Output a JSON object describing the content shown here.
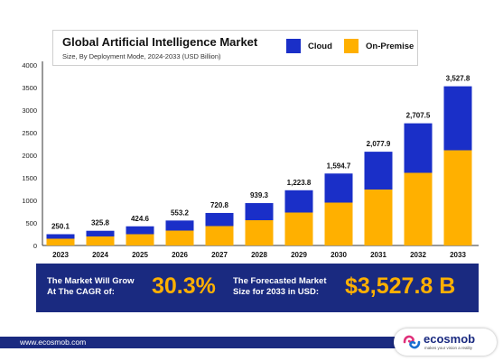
{
  "chart_data": {
    "type": "bar",
    "stacked": true,
    "title": "Global Artificial Intelligence Market",
    "subtitle": "Size, By Deployment Mode, 2024-2033 (USD Billion)",
    "categories": [
      "2023",
      "2024",
      "2025",
      "2026",
      "2027",
      "2028",
      "2029",
      "2030",
      "2031",
      "2032",
      "2033"
    ],
    "series": [
      {
        "name": "On-Premise",
        "color": "#ffb000",
        "values": [
          150,
          200,
          250,
          330,
          430,
          560,
          730,
          950,
          1240,
          1610,
          2110
        ]
      },
      {
        "name": "Cloud",
        "color": "#1a2fc8",
        "values": [
          100.1,
          125.8,
          174.6,
          223.2,
          290.8,
          379.3,
          493.8,
          644.7,
          837.9,
          1097.5,
          1417.8
        ]
      }
    ],
    "totals_labels": [
      "250.1",
      "325.8",
      "424.6",
      "553.2",
      "720.8",
      "939.3",
      "1,223.8",
      "1,594.7",
      "2,077.9",
      "2,707.5",
      "3,527.8"
    ],
    "ylim": [
      0,
      4000
    ],
    "yticks": [
      0,
      500,
      1000,
      1500,
      2000,
      2500,
      3000,
      3500,
      4000
    ],
    "legend_position": "top-right",
    "grid": false
  },
  "banner": {
    "cagr_text_line1": "The Market Will Grow",
    "cagr_text_line2": "At The CAGR of:",
    "cagr_value": "30.3%",
    "size_text_line1": "The Forecasted Market",
    "size_text_line2": "Size for 2033 in USD:",
    "size_value": "$3,527.8 B"
  },
  "footer": {
    "url": "www.ecosmob.com",
    "brand": "ecosmob",
    "tagline": "makes your vision a reality"
  },
  "colors": {
    "navy": "#1a2a80",
    "cloud": "#1a2fc8",
    "onpremise": "#ffb000"
  }
}
